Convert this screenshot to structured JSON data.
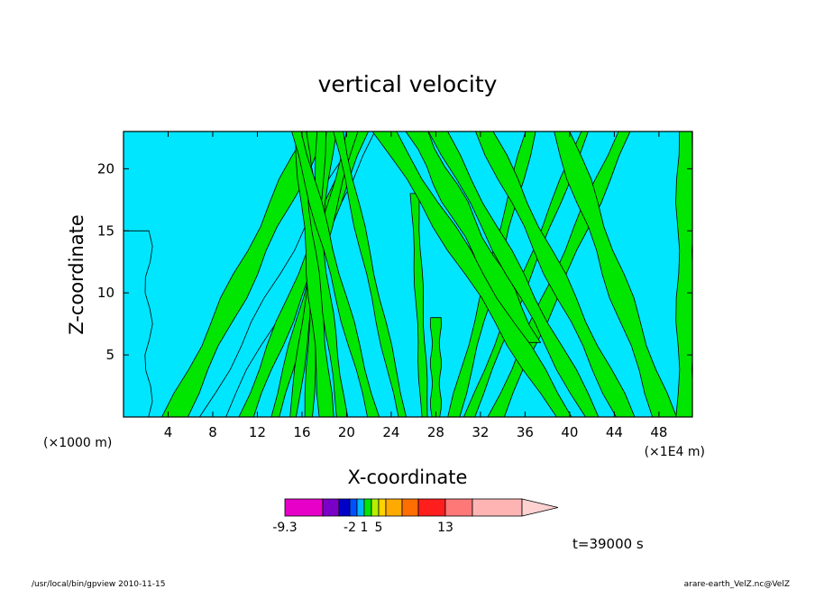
{
  "chart_data": {
    "type": "heatmap",
    "title": "vertical velocity",
    "xlabel": "X-coordinate",
    "ylabel": "Z-coordinate",
    "x_unit_left": "(×1000 m)",
    "x_unit_right": "(×1E4 m)",
    "xlim": [
      0,
      51
    ],
    "ylim": [
      0,
      23
    ],
    "x_ticks": [
      4,
      8,
      12,
      16,
      20,
      24,
      28,
      32,
      36,
      40,
      44,
      48
    ],
    "y_ticks": [
      5,
      10,
      15,
      20
    ],
    "field_colors": {
      "positive": "#00e600",
      "negative": "#00e6ff",
      "contour": "#000000"
    },
    "bands": [
      {
        "x_center": 0.8,
        "width": 3.6,
        "slope": 0.0,
        "sign": "negative",
        "zmin": 0,
        "zmax": 15
      },
      {
        "x_center": 4.6,
        "width": 2.4,
        "slope": 0.55,
        "sign": "positive",
        "zmin": 0,
        "zmax": 23
      },
      {
        "x_center": 8.0,
        "width": 2.4,
        "slope": 0.6,
        "sign": "negative",
        "zmin": 0,
        "zmax": 23
      },
      {
        "x_center": 11.0,
        "width": 1.6,
        "slope": 0.45,
        "sign": "positive",
        "zmin": 0,
        "zmax": 23
      },
      {
        "x_center": 13.6,
        "width": 1.1,
        "slope": 0.3,
        "sign": "positive",
        "zmin": 0,
        "zmax": 23
      },
      {
        "x_center": 15.2,
        "width": 0.9,
        "slope": 0.15,
        "sign": "positive",
        "zmin": 0,
        "zmax": 23
      },
      {
        "x_center": 16.6,
        "width": 0.9,
        "slope": 0.05,
        "sign": "positive",
        "zmin": 0,
        "zmax": 23
      },
      {
        "x_center": 18.2,
        "width": 1.4,
        "slope": -0.1,
        "sign": "positive",
        "zmin": 0,
        "zmax": 23
      },
      {
        "x_center": 19.6,
        "width": 1.0,
        "slope": -0.15,
        "sign": "positive",
        "zmin": 0,
        "zmax": 20
      },
      {
        "x_center": 22.4,
        "width": 1.2,
        "slope": -0.3,
        "sign": "positive",
        "zmin": 0,
        "zmax": 23
      },
      {
        "x_center": 25.0,
        "width": 1.0,
        "slope": -0.25,
        "sign": "positive",
        "zmin": 0,
        "zmax": 23
      },
      {
        "x_center": 27.0,
        "width": 0.8,
        "slope": -0.05,
        "sign": "positive",
        "zmin": 0,
        "zmax": 18
      },
      {
        "x_center": 28.0,
        "width": 1.0,
        "slope": 0.0,
        "sign": "positive",
        "zmin": 0,
        "zmax": 8
      },
      {
        "x_center": 29.6,
        "width": 1.2,
        "slope": 0.3,
        "sign": "positive",
        "zmin": 0,
        "zmax": 23
      },
      {
        "x_center": 31.0,
        "width": 1.0,
        "slope": 0.45,
        "sign": "positive",
        "zmin": 0,
        "zmax": 23
      },
      {
        "x_center": 33.4,
        "width": 1.6,
        "slope": 0.5,
        "sign": "positive",
        "zmin": 0,
        "zmax": 23
      },
      {
        "x_center": 36.5,
        "width": 2.4,
        "slope": -0.6,
        "sign": "positive",
        "zmin": 6,
        "zmax": 23
      },
      {
        "x_center": 39.5,
        "width": 2.2,
        "slope": -0.7,
        "sign": "positive",
        "zmin": 0,
        "zmax": 23
      },
      {
        "x_center": 42.0,
        "width": 1.8,
        "slope": -0.6,
        "sign": "positive",
        "zmin": 0,
        "zmax": 23
      },
      {
        "x_center": 45.0,
        "width": 2.0,
        "slope": -0.55,
        "sign": "positive",
        "zmin": 0,
        "zmax": 23
      },
      {
        "x_center": 48.5,
        "width": 2.2,
        "slope": -0.4,
        "sign": "positive",
        "zmin": 0,
        "zmax": 23
      },
      {
        "x_center": 50.4,
        "width": 1.8,
        "slope": 0.0,
        "sign": "positive",
        "zmin": 0,
        "zmax": 23
      }
    ],
    "colorbar": {
      "colors": [
        "#e600c8",
        "#7a00c8",
        "#0000c8",
        "#0050ff",
        "#00b4ff",
        "#00e600",
        "#b4f000",
        "#ffd200",
        "#ffaa00",
        "#ff6e00",
        "#ff1e1e",
        "#ff7878",
        "#ffb4b4",
        "#ffd2d2"
      ],
      "label_texts": [
        "-9.3",
        "-2",
        "1",
        "5",
        "13"
      ],
      "label_bins": [
        0,
        3,
        5,
        7,
        11
      ]
    },
    "time_label": "t=39000 s",
    "footer_left": "/usr/local/bin/gpview   2010-11-15",
    "footer_right": "arare-earth_VelZ.nc@VelZ"
  }
}
